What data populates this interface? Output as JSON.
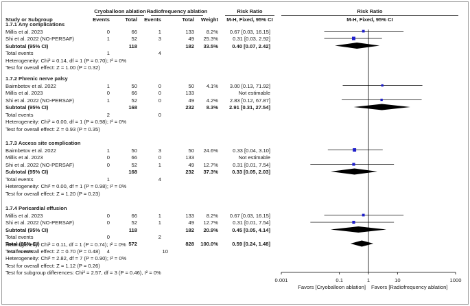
{
  "header": {
    "group1": "Cryoballoon ablation",
    "group2": "Radiofrequency ablation",
    "rr": "Risk Ratio",
    "rr_plot": "Risk Ratio",
    "study_col": "Study or Subgroup",
    "events1": "Events",
    "total1": "Total",
    "events2": "Events",
    "total2": "Total",
    "weight": "Weight",
    "method": "M-H, Fixed, 95% CI",
    "method_plot": "M-H, Fixed, 95% CI"
  },
  "subgroups": [
    {
      "title": "1.7.1 Any complications",
      "studies": [
        {
          "name": "Millis et al. 2023",
          "e1": "0",
          "n1": "66",
          "e2": "1",
          "n2": "133",
          "w": "8.2%",
          "ci": "0.67 [0.03, 16.15]"
        },
        {
          "name": "Shi et al. 2022 (NO-PERSAF)",
          "e1": "1",
          "n1": "52",
          "e2": "3",
          "n2": "49",
          "w": "25.3%",
          "ci": "0.31 [0.03, 2.92]"
        }
      ],
      "subtotal": {
        "label": "Subtotal (95% CI)",
        "n1": "118",
        "n2": "182",
        "w": "33.5%",
        "ci": "0.40 [0.07, 2.42]"
      },
      "total_events": {
        "label": "Total events",
        "e1": "1",
        "e2": "4"
      },
      "het": "Heterogeneity: Chi² = 0.14, df = 1 (P = 0.70); I² = 0%",
      "effect": "Test for overall effect: Z = 1.00 (P = 0.32)"
    },
    {
      "title": "1.7.2 Phrenic nerve palsy",
      "studies": [
        {
          "name": "Bairnbetov et al. 2022",
          "e1": "1",
          "n1": "50",
          "e2": "0",
          "n2": "50",
          "w": "4.1%",
          "ci": "3.00 [0.13, 71.92]"
        },
        {
          "name": "Millis et al. 2023",
          "e1": "0",
          "n1": "66",
          "e2": "0",
          "n2": "133",
          "w": "",
          "ci": "Not estimable"
        },
        {
          "name": "Shi et al. 2022 (NO-PERSAF)",
          "e1": "1",
          "n1": "52",
          "e2": "0",
          "n2": "49",
          "w": "4.2%",
          "ci": "2.83 [0.12, 67.87]"
        }
      ],
      "subtotal": {
        "label": "Subtotal (95% CI)",
        "n1": "168",
        "n2": "232",
        "w": "8.3%",
        "ci": "2.91 [0.31, 27.54]"
      },
      "total_events": {
        "label": "Total events",
        "e1": "2",
        "e2": "0"
      },
      "het": "Heterogeneity: Chi² = 0.00, df = 1 (P = 0.98); I² = 0%",
      "effect": "Test for overall effect: Z = 0.93 (P = 0.35)"
    },
    {
      "title": "1.7.3 Access site complication",
      "studies": [
        {
          "name": "Bairnbetov et al. 2022",
          "e1": "1",
          "n1": "50",
          "e2": "3",
          "n2": "50",
          "w": "24.6%",
          "ci": "0.33 [0.04, 3.10]"
        },
        {
          "name": "Millis et al. 2023",
          "e1": "0",
          "n1": "66",
          "e2": "0",
          "n2": "133",
          "w": "",
          "ci": "Not estimable"
        },
        {
          "name": "Shi et al. 2022 (NO-PERSAF)",
          "e1": "0",
          "n1": "52",
          "e2": "1",
          "n2": "49",
          "w": "12.7%",
          "ci": "0.31 [0.01, 7.54]"
        }
      ],
      "subtotal": {
        "label": "Subtotal (95% CI)",
        "n1": "168",
        "n2": "232",
        "w": "37.3%",
        "ci": "0.33 [0.05, 2.03]"
      },
      "total_events": {
        "label": "Total events",
        "e1": "1",
        "e2": "4"
      },
      "het": "Heterogeneity: Chi² = 0.00, df = 1 (P = 0.98); I² = 0%",
      "effect": "Test for overall effect: Z = 1.20 (P = 0.23)"
    },
    {
      "title": "1.7.4 Pericardial effusion",
      "studies": [
        {
          "name": "Millis et al. 2023",
          "e1": "0",
          "n1": "66",
          "e2": "1",
          "n2": "133",
          "w": "8.2%",
          "ci": "0.67 [0.03, 16.15]"
        },
        {
          "name": "Shi et al. 2022 (NO-PERSAF)",
          "e1": "0",
          "n1": "52",
          "e2": "1",
          "n2": "49",
          "w": "12.7%",
          "ci": "0.31 [0.01, 7.54]"
        }
      ],
      "subtotal": {
        "label": "Subtotal (95% CI)",
        "n1": "118",
        "n2": "182",
        "w": "20.9%",
        "ci": "0.45 [0.05, 4.14]"
      },
      "total_events": {
        "label": "Total events",
        "e1": "0",
        "e2": "2"
      },
      "het": "Heterogeneity: Chi² = 0.11, df = 1 (P = 0.74); I² = 0%",
      "effect": "Test for overall effect: Z = 0.70 (P = 0.48)"
    }
  ],
  "overall": {
    "label": "Total (95% CI)",
    "n1": "572",
    "n2": "828",
    "w": "100.0%",
    "ci": "0.59 [0.24, 1.48]",
    "total_events": {
      "label": "Total events",
      "e1": "4",
      "e2": "10"
    },
    "het": "Heterogeneity: Chi² = 2.82, df = 7 (P = 0.90); I² = 0%",
    "effect": "Test for overall effect: Z = 1.12 (P = 0.26)",
    "subgroup": "Test for subgroup differences: Chi² = 2.57, df = 3 (P = 0.46), I² = 0%"
  },
  "axis": {
    "ticks": [
      {
        "value": 0.001,
        "label": "0.001"
      },
      {
        "value": 0.1,
        "label": "0.1"
      },
      {
        "value": 1,
        "label": "1"
      },
      {
        "value": 10,
        "label": "10"
      },
      {
        "value": 1000,
        "label": "1000"
      }
    ],
    "favors_left": "Favors [Cryoballoon ablation]",
    "favors_right": "Favors [Radiofrequency ablation]"
  },
  "colors": {
    "marker": "#1f1fcc",
    "diamond": "#000000",
    "line": "#000000"
  },
  "chart_data": {
    "type": "forest",
    "scale": "log",
    "xlim": [
      0.001,
      1000
    ],
    "null_value": 1,
    "studies": [
      {
        "group": "1.7.1",
        "name": "Millis et al. 2023",
        "rr": 0.67,
        "lo": 0.03,
        "hi": 16.15,
        "weight": 8.2
      },
      {
        "group": "1.7.1",
        "name": "Shi et al. 2022 (NO-PERSAF)",
        "rr": 0.31,
        "lo": 0.03,
        "hi": 2.92,
        "weight": 25.3
      },
      {
        "group": "1.7.2",
        "name": "Bairnbetov et al. 2022",
        "rr": 3.0,
        "lo": 0.13,
        "hi": 71.92,
        "weight": 4.1
      },
      {
        "group": "1.7.2",
        "name": "Shi et al. 2022 (NO-PERSAF)",
        "rr": 2.83,
        "lo": 0.12,
        "hi": 67.87,
        "weight": 4.2
      },
      {
        "group": "1.7.3",
        "name": "Bairnbetov et al. 2022",
        "rr": 0.33,
        "lo": 0.04,
        "hi": 3.1,
        "weight": 24.6
      },
      {
        "group": "1.7.3",
        "name": "Shi et al. 2022 (NO-PERSAF)",
        "rr": 0.31,
        "lo": 0.01,
        "hi": 7.54,
        "weight": 12.7
      },
      {
        "group": "1.7.4",
        "name": "Millis et al. 2023",
        "rr": 0.67,
        "lo": 0.03,
        "hi": 16.15,
        "weight": 8.2
      },
      {
        "group": "1.7.4",
        "name": "Shi et al. 2022 (NO-PERSAF)",
        "rr": 0.31,
        "lo": 0.01,
        "hi": 7.54,
        "weight": 12.7
      }
    ],
    "subtotals": [
      {
        "group": "1.7.1",
        "rr": 0.4,
        "lo": 0.07,
        "hi": 2.42
      },
      {
        "group": "1.7.2",
        "rr": 2.91,
        "lo": 0.31,
        "hi": 27.54
      },
      {
        "group": "1.7.3",
        "rr": 0.33,
        "lo": 0.05,
        "hi": 2.03
      },
      {
        "group": "1.7.4",
        "rr": 0.45,
        "lo": 0.05,
        "hi": 4.14
      }
    ],
    "overall": {
      "rr": 0.59,
      "lo": 0.24,
      "hi": 1.48
    }
  }
}
